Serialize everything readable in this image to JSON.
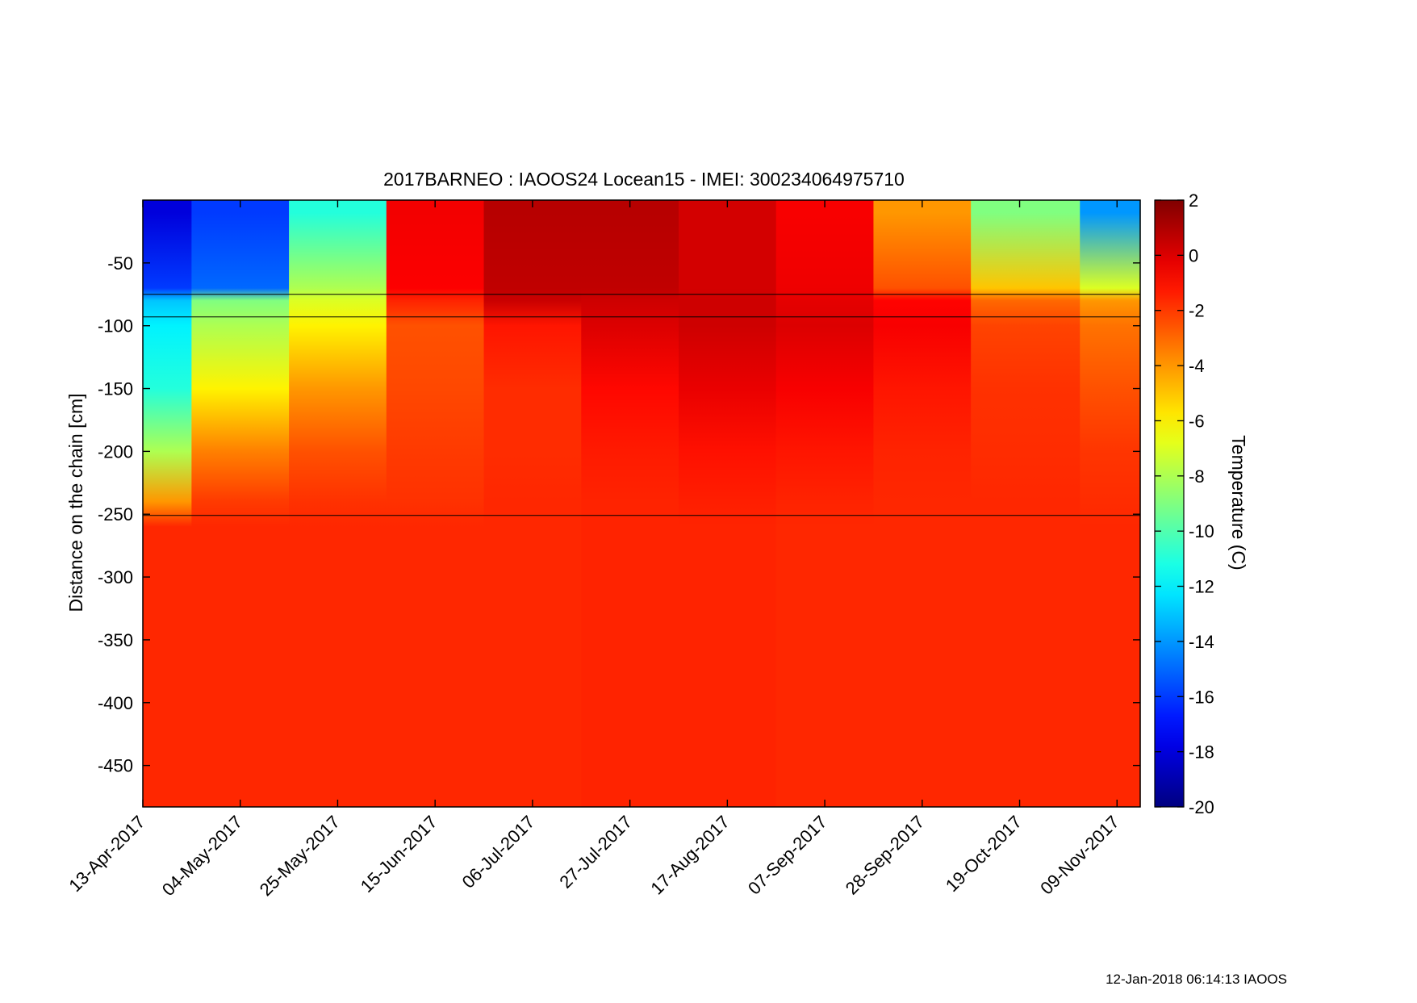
{
  "chart_data": {
    "type": "heatmap",
    "title": "2017BARNEO : IAOOS24  Locean15 - IMEI: 300234064975710",
    "ylabel": "Distance on the chain [cm]",
    "xlabel": "",
    "colorbar_label": "Temperature (C)",
    "x_range": [
      "2017-04-13",
      "2017-11-14"
    ],
    "y_range": [
      -483,
      0
    ],
    "color_range": [
      -20,
      2
    ],
    "colormap": "jet",
    "x_ticks": [
      {
        "date": "2017-04-13",
        "label": "13-Apr-2017"
      },
      {
        "date": "2017-05-04",
        "label": "04-May-2017"
      },
      {
        "date": "2017-05-25",
        "label": "25-May-2017"
      },
      {
        "date": "2017-06-15",
        "label": "15-Jun-2017"
      },
      {
        "date": "2017-07-06",
        "label": "06-Jul-2017"
      },
      {
        "date": "2017-07-27",
        "label": "27-Jul-2017"
      },
      {
        "date": "2017-08-17",
        "label": "17-Aug-2017"
      },
      {
        "date": "2017-09-07",
        "label": "07-Sep-2017"
      },
      {
        "date": "2017-09-28",
        "label": "28-Sep-2017"
      },
      {
        "date": "2017-10-19",
        "label": "19-Oct-2017"
      },
      {
        "date": "2017-11-09",
        "label": "09-Nov-2017"
      }
    ],
    "y_ticks": [
      {
        "value": -50,
        "label": "-50"
      },
      {
        "value": -100,
        "label": "-100"
      },
      {
        "value": -150,
        "label": "-150"
      },
      {
        "value": -200,
        "label": "-200"
      },
      {
        "value": -250,
        "label": "-250"
      },
      {
        "value": -300,
        "label": "-300"
      },
      {
        "value": -350,
        "label": "-350"
      },
      {
        "value": -400,
        "label": "-400"
      },
      {
        "value": -450,
        "label": "-450"
      }
    ],
    "colorbar_ticks": [
      {
        "value": 2,
        "label": "2"
      },
      {
        "value": 0,
        "label": "0"
      },
      {
        "value": -2,
        "label": "-2"
      },
      {
        "value": -4,
        "label": "-4"
      },
      {
        "value": -6,
        "label": "-6"
      },
      {
        "value": -8,
        "label": "-8"
      },
      {
        "value": -10,
        "label": "-10"
      },
      {
        "value": -12,
        "label": "-12"
      },
      {
        "value": -14,
        "label": "-14"
      },
      {
        "value": -16,
        "label": "-16"
      },
      {
        "value": -18,
        "label": "-18"
      },
      {
        "value": -20,
        "label": "-20"
      }
    ],
    "reference_lines_cm": [
      -75,
      -93,
      -251
    ],
    "temperature_profiles": [
      {
        "date": "2017-04-13",
        "depths": [
          -10,
          -70,
          -80,
          -100,
          -150,
          -200,
          -240,
          -260,
          -470
        ],
        "temps": [
          -18,
          -16,
          -13,
          -12,
          -11,
          -8,
          -4,
          -1.6,
          -1.6
        ]
      },
      {
        "date": "2017-05-04",
        "depths": [
          -10,
          -70,
          -80,
          -100,
          -150,
          -200,
          -240,
          -260,
          -470
        ],
        "temps": [
          -16,
          -15,
          -9,
          -8,
          -6,
          -3.5,
          -2,
          -1.6,
          -1.6
        ]
      },
      {
        "date": "2017-05-25",
        "depths": [
          -10,
          -70,
          -80,
          -100,
          -150,
          -200,
          -240,
          -260,
          -470
        ],
        "temps": [
          -11,
          -8,
          -7,
          -6,
          -4,
          -2.5,
          -1.8,
          -1.6,
          -1.6
        ]
      },
      {
        "date": "2017-06-15",
        "depths": [
          -10,
          -70,
          -80,
          -100,
          -150,
          -200,
          -240,
          -260,
          -470
        ],
        "temps": [
          -0.5,
          -0.7,
          -1.5,
          -2.5,
          -2.3,
          -2,
          -1.8,
          -1.6,
          -1.6
        ]
      },
      {
        "date": "2017-07-06",
        "depths": [
          -10,
          -70,
          -80,
          -100,
          -150,
          -200,
          -240,
          -260,
          -470
        ],
        "temps": [
          0.8,
          0.6,
          0.4,
          -1.2,
          -1.7,
          -1.7,
          -1.6,
          -1.6,
          -1.6
        ]
      },
      {
        "date": "2017-07-27",
        "depths": [
          -10,
          -70,
          -80,
          -100,
          -150,
          -200,
          -240,
          -260,
          -470
        ],
        "temps": [
          0.8,
          0.6,
          0.3,
          0,
          -0.9,
          -1.3,
          -1.5,
          -1.5,
          -1.5
        ]
      },
      {
        "date": "2017-08-17",
        "depths": [
          -10,
          -70,
          -80,
          -100,
          -150,
          -200,
          -240,
          -260,
          -470
        ],
        "temps": [
          0.2,
          0.2,
          0.3,
          0.3,
          -0.3,
          -1.1,
          -1.4,
          -1.5,
          -1.5
        ]
      },
      {
        "date": "2017-09-07",
        "depths": [
          -10,
          -70,
          -80,
          -100,
          -150,
          -200,
          -240,
          -260,
          -470
        ],
        "temps": [
          -0.6,
          -0.4,
          -0.2,
          0,
          -0.6,
          -1.2,
          -1.5,
          -1.6,
          -1.6
        ]
      },
      {
        "date": "2017-09-28",
        "depths": [
          -10,
          -70,
          -80,
          -100,
          -150,
          -200,
          -240,
          -260,
          -470
        ],
        "temps": [
          -4,
          -2.5,
          -0.8,
          -0.6,
          -1.2,
          -1.5,
          -1.6,
          -1.6,
          -1.6
        ]
      },
      {
        "date": "2017-10-19",
        "depths": [
          -10,
          -70,
          -80,
          -100,
          -150,
          -200,
          -240,
          -260,
          -470
        ],
        "temps": [
          -9,
          -5,
          -3,
          -2.2,
          -1.8,
          -1.7,
          -1.6,
          -1.6,
          -1.6
        ]
      },
      {
        "date": "2017-11-14",
        "depths": [
          -10,
          -70,
          -80,
          -100,
          -150,
          -200,
          -240,
          -260,
          -470
        ],
        "temps": [
          -14,
          -7,
          -4,
          -3.2,
          -2.5,
          -1.9,
          -1.7,
          -1.6,
          -1.6
        ]
      }
    ]
  },
  "footer": {
    "timestamp": "12-Jan-2018 06:14:13 IAOOS"
  }
}
